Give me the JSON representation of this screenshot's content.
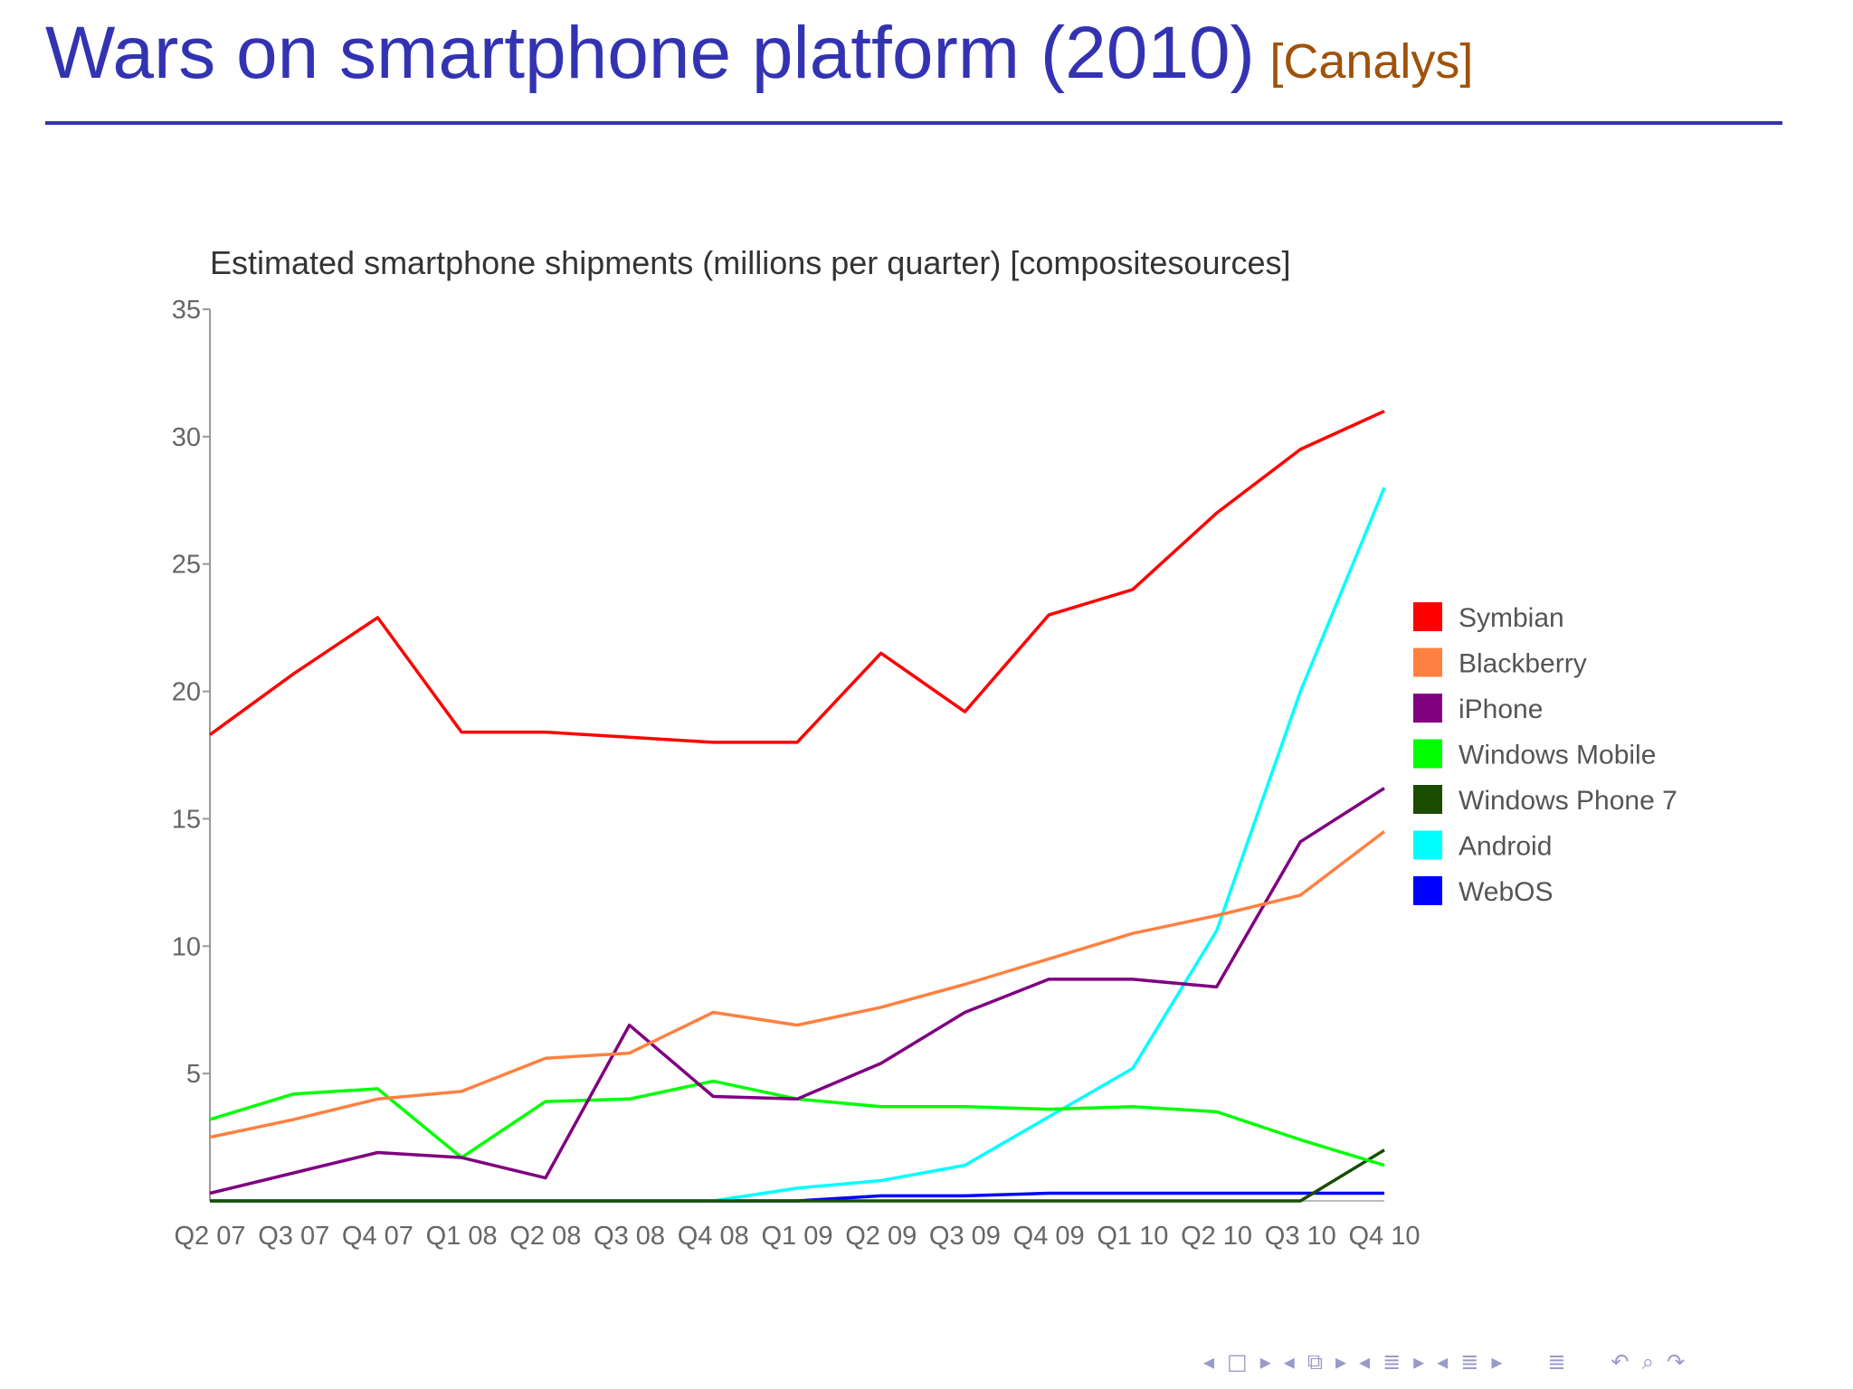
{
  "slide": {
    "title": "Wars on smartphone platform (2010)",
    "source": "[Canalys]"
  },
  "colors": {
    "title": "#3333b2",
    "source": "#a0520a"
  },
  "chart_data": {
    "type": "line",
    "title": "Estimated smartphone shipments (millions per quarter) [compositesources]",
    "xlabel": "",
    "ylabel": "",
    "ylim": [
      0,
      35
    ],
    "yticks": [
      5,
      10,
      15,
      20,
      25,
      30,
      35
    ],
    "grid": false,
    "legend_position": "right",
    "categories": [
      "Q2 07",
      "Q3 07",
      "Q4 07",
      "Q1 08",
      "Q2 08",
      "Q3 08",
      "Q4 08",
      "Q1 09",
      "Q2 09",
      "Q3 09",
      "Q4 09",
      "Q1 10",
      "Q2 10",
      "Q3 10",
      "Q4 10"
    ],
    "series": [
      {
        "name": "Symbian",
        "color": "#ff0000",
        "values": [
          18.3,
          20.7,
          22.9,
          18.4,
          18.4,
          18.2,
          18.0,
          18.0,
          21.5,
          19.2,
          23.0,
          24.0,
          27.0,
          29.5,
          31.0
        ]
      },
      {
        "name": "Blackberry",
        "color": "#ff8040",
        "values": [
          2.5,
          3.2,
          4.0,
          4.3,
          5.6,
          5.8,
          7.4,
          6.9,
          7.6,
          8.5,
          9.5,
          10.5,
          11.2,
          12.0,
          14.5
        ]
      },
      {
        "name": "iPhone",
        "color": "#800080",
        "values": [
          0.3,
          1.1,
          1.9,
          1.7,
          0.9,
          6.9,
          4.1,
          4.0,
          5.4,
          7.4,
          8.7,
          8.7,
          8.4,
          14.1,
          16.2
        ]
      },
      {
        "name": "Windows Mobile",
        "color": "#00ff00",
        "values": [
          3.2,
          4.2,
          4.4,
          1.7,
          3.9,
          4.0,
          4.7,
          4.0,
          3.7,
          3.7,
          3.6,
          3.7,
          3.5,
          2.4,
          1.4
        ]
      },
      {
        "name": "Windows Phone 7",
        "color": "#1a4d00",
        "values": [
          0,
          0,
          0,
          0,
          0,
          0,
          0,
          0,
          0,
          0,
          0,
          0,
          0,
          0,
          2.0
        ]
      },
      {
        "name": "Android",
        "color": "#00ffff",
        "values": [
          0,
          0,
          0,
          0,
          0,
          0,
          0,
          0.5,
          0.8,
          1.4,
          3.3,
          5.2,
          10.6,
          20.0,
          28.0
        ]
      },
      {
        "name": "WebOS",
        "color": "#0000ff",
        "values": [
          0,
          0,
          0,
          0,
          0,
          0,
          0,
          0,
          0.2,
          0.2,
          0.3,
          0.3,
          0.3,
          0.3,
          0.3
        ]
      }
    ]
  },
  "nav": {
    "icons": [
      "nav-left-arrow",
      "frame-icon",
      "nav-right-arrow",
      "nav-left-arrow",
      "subsection-icon",
      "nav-right-arrow",
      "nav-left-arrow",
      "section-icon",
      "nav-right-arrow",
      "nav-left-arrow",
      "section-icon",
      "nav-right-arrow",
      "align-icon",
      "undo-icon",
      "search-icon",
      "redo-icon"
    ]
  }
}
